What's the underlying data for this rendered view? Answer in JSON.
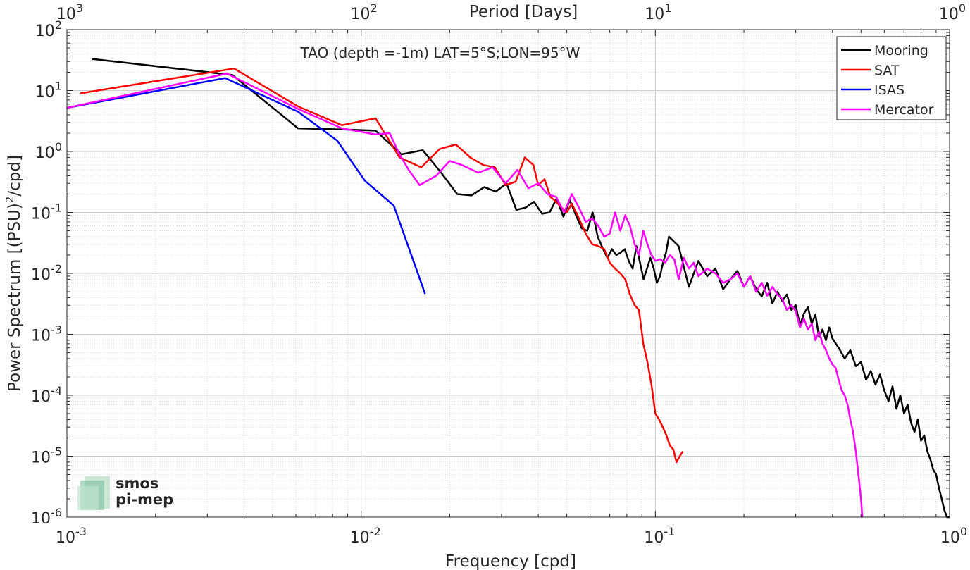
{
  "chart_data": {
    "type": "line",
    "title": "TAO (depth =-1m) LAT=5°S;LON=95°W",
    "xlabel": "Frequency [cpd]",
    "ylabel_main": "Power Spectrum [(PSU)",
    "ylabel_sup": "2",
    "ylabel_tail": "/cpd]",
    "top_axis_label": "Period [Days]",
    "x_scale": "log",
    "y_scale": "log",
    "xlim": [
      0.001,
      1
    ],
    "ylim": [
      1e-06,
      100
    ],
    "grid": true,
    "legend_position": "top-right",
    "x_ticks": [
      {
        "base": "10",
        "exp": "-3"
      },
      {
        "base": "10",
        "exp": "-2"
      },
      {
        "base": "10",
        "exp": "-1"
      },
      {
        "base": "10",
        "exp": "0"
      }
    ],
    "y_ticks": [
      {
        "base": "10",
        "exp": "-6"
      },
      {
        "base": "10",
        "exp": "-5"
      },
      {
        "base": "10",
        "exp": "-4"
      },
      {
        "base": "10",
        "exp": "-3"
      },
      {
        "base": "10",
        "exp": "-2"
      },
      {
        "base": "10",
        "exp": "-1"
      },
      {
        "base": "10",
        "exp": "0"
      },
      {
        "base": "10",
        "exp": "1"
      },
      {
        "base": "10",
        "exp": "2"
      }
    ],
    "top_ticks": [
      {
        "base": "10",
        "exp": "3"
      },
      {
        "base": "10",
        "exp": "2"
      },
      {
        "base": "10",
        "exp": "1"
      },
      {
        "base": "10",
        "exp": "0"
      }
    ],
    "series": [
      {
        "name": "Mooring",
        "color": "#000000",
        "x": [
          0.00122,
          0.00365,
          0.0061,
          0.0086,
          0.0112,
          0.0137,
          0.0162,
          0.0187,
          0.0212,
          0.0237,
          0.0262,
          0.0287,
          0.0312,
          0.0337,
          0.0362,
          0.0387,
          0.0412,
          0.0437,
          0.0462,
          0.0487,
          0.0512,
          0.0537,
          0.0562,
          0.0587,
          0.0612,
          0.0637,
          0.0662,
          0.0687,
          0.0712,
          0.0737,
          0.0762,
          0.0787,
          0.0812,
          0.0837,
          0.0862,
          0.0887,
          0.0912,
          0.0937,
          0.0962,
          0.0987,
          0.1012,
          0.1037,
          0.1062,
          0.1087,
          0.1112,
          0.12,
          0.13,
          0.14,
          0.15,
          0.16,
          0.17,
          0.18,
          0.19,
          0.2,
          0.21,
          0.22,
          0.23,
          0.24,
          0.25,
          0.26,
          0.27,
          0.28,
          0.29,
          0.3,
          0.31,
          0.32,
          0.33,
          0.34,
          0.35,
          0.36,
          0.37,
          0.38,
          0.39,
          0.4,
          0.42,
          0.44,
          0.46,
          0.48,
          0.5,
          0.52,
          0.54,
          0.56,
          0.58,
          0.6,
          0.62,
          0.64,
          0.66,
          0.68,
          0.7,
          0.72,
          0.74,
          0.76,
          0.78,
          0.8,
          0.82,
          0.84,
          0.86,
          0.88,
          0.9,
          0.92,
          0.94,
          0.96,
          0.98,
          1.0
        ],
        "y": [
          33,
          18,
          2.4,
          2.3,
          2.2,
          0.9,
          1.05,
          0.45,
          0.2,
          0.19,
          0.26,
          0.22,
          0.3,
          0.11,
          0.12,
          0.15,
          0.095,
          0.1,
          0.17,
          0.085,
          0.16,
          0.09,
          0.055,
          0.05,
          0.1,
          0.04,
          0.026,
          0.018,
          0.025,
          0.02,
          0.022,
          0.025,
          0.016,
          0.012,
          0.028,
          0.015,
          0.008,
          0.012,
          0.018,
          0.012,
          0.007,
          0.009,
          0.015,
          0.022,
          0.04,
          0.028,
          0.006,
          0.016,
          0.009,
          0.012,
          0.0055,
          0.008,
          0.011,
          0.006,
          0.009,
          0.0055,
          0.0042,
          0.007,
          0.0032,
          0.005,
          0.0035,
          0.0045,
          0.0025,
          0.003,
          0.0014,
          0.0022,
          0.0028,
          0.0015,
          0.0021,
          0.0009,
          0.0012,
          0.0008,
          0.0013,
          0.00085,
          0.0006,
          0.0004,
          0.00055,
          0.0003,
          0.00035,
          0.00018,
          0.00025,
          0.00015,
          0.00022,
          0.00012,
          8e-05,
          0.00014,
          6e-05,
          0.0001,
          5e-05,
          7e-05,
          3.5e-05,
          2.5e-05,
          4e-05,
          1.8e-05,
          2.2e-05,
          1.2e-05,
          9e-06,
          6e-06,
          5e-06,
          3e-06,
          2e-06,
          1.3e-06,
          1e-06,
          1e-06
        ]
      },
      {
        "name": "SAT",
        "color": "#ff0000",
        "x": [
          0.00111,
          0.0037,
          0.0061,
          0.0086,
          0.0112,
          0.0135,
          0.016,
          0.0185,
          0.021,
          0.0235,
          0.026,
          0.0285,
          0.031,
          0.0335,
          0.036,
          0.0385,
          0.04,
          0.042,
          0.044,
          0.046,
          0.048,
          0.05,
          0.052,
          0.055,
          0.058,
          0.061,
          0.064,
          0.067,
          0.07,
          0.073,
          0.076,
          0.079,
          0.082,
          0.085,
          0.088,
          0.091,
          0.094,
          0.097,
          0.1,
          0.103,
          0.106,
          0.109,
          0.112,
          0.115,
          0.118,
          0.121,
          0.124
        ],
        "y": [
          9,
          23,
          5.5,
          2.7,
          3.5,
          0.8,
          0.55,
          1.1,
          1.3,
          0.8,
          0.6,
          0.55,
          0.28,
          0.32,
          0.8,
          0.6,
          0.28,
          0.35,
          0.18,
          0.15,
          0.12,
          0.1,
          0.14,
          0.08,
          0.045,
          0.03,
          0.028,
          0.025,
          0.015,
          0.012,
          0.01,
          0.008,
          0.0045,
          0.003,
          0.0025,
          0.0007,
          0.00035,
          0.00015,
          5e-05,
          4e-05,
          3e-05,
          2.2e-05,
          1.5e-05,
          1.3e-05,
          8e-06,
          1e-05,
          1.2e-05
        ]
      },
      {
        "name": "ISAS",
        "color": "#0000ff",
        "x": [
          0.001,
          0.00345,
          0.0061,
          0.0083,
          0.0103,
          0.0129,
          0.0165
        ],
        "y": [
          5.2,
          16,
          4.5,
          1.5,
          0.33,
          0.13,
          0.0046
        ]
      },
      {
        "name": "Mercator",
        "color": "#ff00ff",
        "x": [
          0.001,
          0.0035,
          0.0061,
          0.0086,
          0.0112,
          0.0125,
          0.0135,
          0.0145,
          0.0158,
          0.018,
          0.02,
          0.022,
          0.025,
          0.028,
          0.031,
          0.034,
          0.037,
          0.04,
          0.043,
          0.046,
          0.049,
          0.052,
          0.055,
          0.058,
          0.061,
          0.064,
          0.067,
          0.07,
          0.073,
          0.076,
          0.079,
          0.082,
          0.085,
          0.088,
          0.091,
          0.094,
          0.097,
          0.1,
          0.104,
          0.108,
          0.112,
          0.116,
          0.12,
          0.125,
          0.13,
          0.135,
          0.14,
          0.15,
          0.16,
          0.17,
          0.18,
          0.19,
          0.2,
          0.21,
          0.22,
          0.23,
          0.24,
          0.25,
          0.26,
          0.27,
          0.28,
          0.29,
          0.3,
          0.31,
          0.32,
          0.33,
          0.34,
          0.35,
          0.36,
          0.37,
          0.38,
          0.39,
          0.4,
          0.41,
          0.42,
          0.43,
          0.44,
          0.45,
          0.46,
          0.47,
          0.48,
          0.49,
          0.5,
          0.505
        ],
        "y": [
          5.2,
          19,
          5,
          2.4,
          1.9,
          2.0,
          0.9,
          0.5,
          0.28,
          0.4,
          0.7,
          0.6,
          0.45,
          0.55,
          0.3,
          0.5,
          0.25,
          0.3,
          0.2,
          0.18,
          0.1,
          0.2,
          0.12,
          0.07,
          0.08,
          0.06,
          0.04,
          0.045,
          0.1,
          0.05,
          0.09,
          0.06,
          0.03,
          0.02,
          0.05,
          0.03,
          0.02,
          0.016,
          0.017,
          0.015,
          0.02,
          0.017,
          0.008,
          0.018,
          0.012,
          0.015,
          0.009,
          0.012,
          0.01,
          0.007,
          0.008,
          0.01,
          0.006,
          0.009,
          0.005,
          0.007,
          0.0043,
          0.006,
          0.0045,
          0.0038,
          0.0025,
          0.003,
          0.0024,
          0.0013,
          0.0018,
          0.0012,
          0.0015,
          0.0008,
          0.0011,
          0.0007,
          0.00055,
          0.0004,
          0.00032,
          0.00028,
          0.00018,
          0.00012,
          0.0001,
          7e-05,
          4e-05,
          2.5e-05,
          1.2e-05,
          5e-06,
          2e-06,
          1e-06
        ]
      }
    ]
  },
  "watermark": {
    "line1": "smos",
    "line2": "pi-mep"
  }
}
